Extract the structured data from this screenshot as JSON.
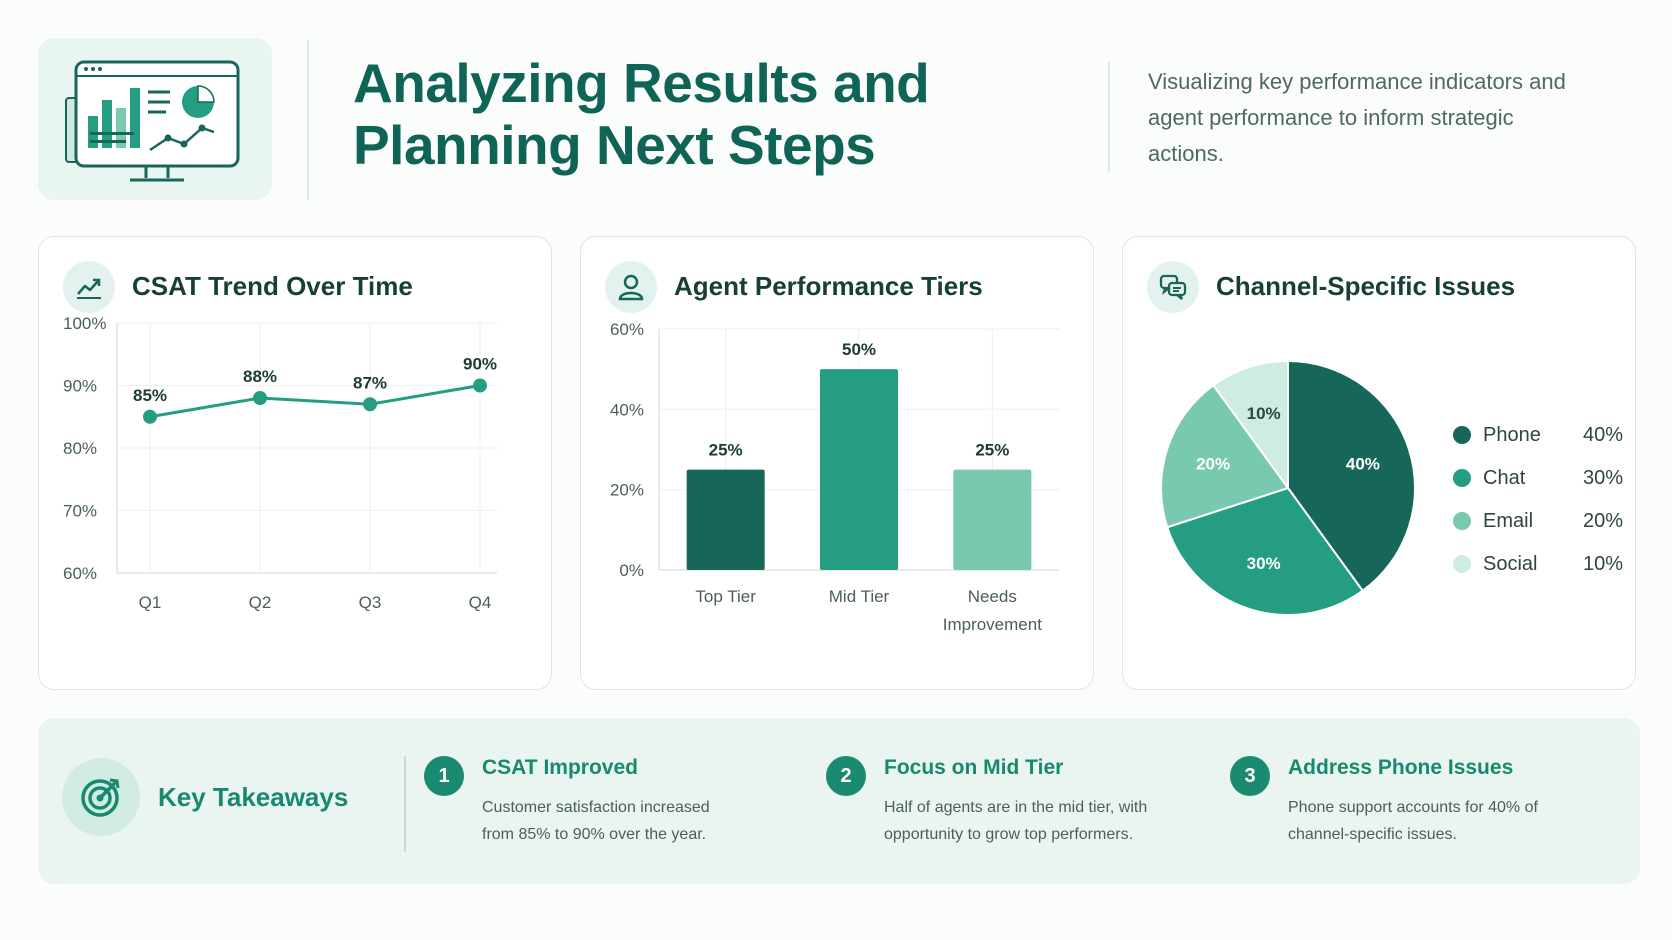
{
  "header": {
    "title": "Analyzing Results and Planning Next Steps",
    "subtitle": "Visualizing key performance indicators and agent performance to inform strategic actions.",
    "icon": "dashboard-monitor-icon"
  },
  "colors": {
    "primary": "#0f6455",
    "dark": "#17665a",
    "mid": "#249d82",
    "light": "#79c8b0",
    "pale": "#cfece3",
    "background": "#fbfdfc"
  },
  "cards": {
    "csat": {
      "title": "CSAT Trend Over Time",
      "icon": "trend-line-icon"
    },
    "agents": {
      "title": "Agent Performance Tiers",
      "icon": "user-icon"
    },
    "channels": {
      "title": "Channel-Specific Issues",
      "icon": "chat-bubbles-icon"
    }
  },
  "chart_data": [
    {
      "type": "line",
      "title": "CSAT Trend Over Time",
      "x": [
        "Q1",
        "Q2",
        "Q3",
        "Q4"
      ],
      "series": [
        {
          "values": [
            85,
            88,
            87,
            90
          ]
        }
      ],
      "value_labels": [
        "85%",
        "88%",
        "87%",
        "90%"
      ],
      "yticks": [
        "60%",
        "70%",
        "80%",
        "90%",
        "100%"
      ],
      "ylim": [
        60,
        100
      ],
      "grid": true
    },
    {
      "type": "bar",
      "title": "Agent Performance Tiers",
      "categories": [
        "Top Tier",
        "Mid Tier",
        "Needs Improvement"
      ],
      "category_lines": [
        [
          "Top Tier"
        ],
        [
          "Mid Tier"
        ],
        [
          "Needs",
          "Improvement"
        ]
      ],
      "values": [
        25,
        50,
        25
      ],
      "value_labels": [
        "25%",
        "50%",
        "25%"
      ],
      "colors": [
        "#17665a",
        "#249d82",
        "#79c8b0"
      ],
      "yticks": [
        "0%",
        "20%",
        "40%",
        "60%"
      ],
      "ylim": [
        0,
        60
      ],
      "grid": true
    },
    {
      "type": "pie",
      "title": "Channel-Specific Issues",
      "categories": [
        "Phone",
        "Chat",
        "Email",
        "Social"
      ],
      "values": [
        40,
        30,
        20,
        10
      ],
      "value_labels": [
        "40%",
        "30%",
        "20%",
        "10%"
      ],
      "colors": [
        "#17665a",
        "#249d82",
        "#79c8b0",
        "#cfece3"
      ],
      "legend": "right"
    }
  ],
  "takeaways": {
    "heading": "Key Takeaways",
    "icon": "target-icon",
    "items": [
      {
        "number": "1",
        "title": "CSAT Improved",
        "text": "Customer satisfaction increased from 85% to 90% over the year."
      },
      {
        "number": "2",
        "title": "Focus on Mid Tier",
        "text": "Half of agents are in the mid tier, with opportunity to grow top performers."
      },
      {
        "number": "3",
        "title": "Address Phone Issues",
        "text": "Phone support accounts for 40% of channel-specific issues."
      }
    ]
  }
}
